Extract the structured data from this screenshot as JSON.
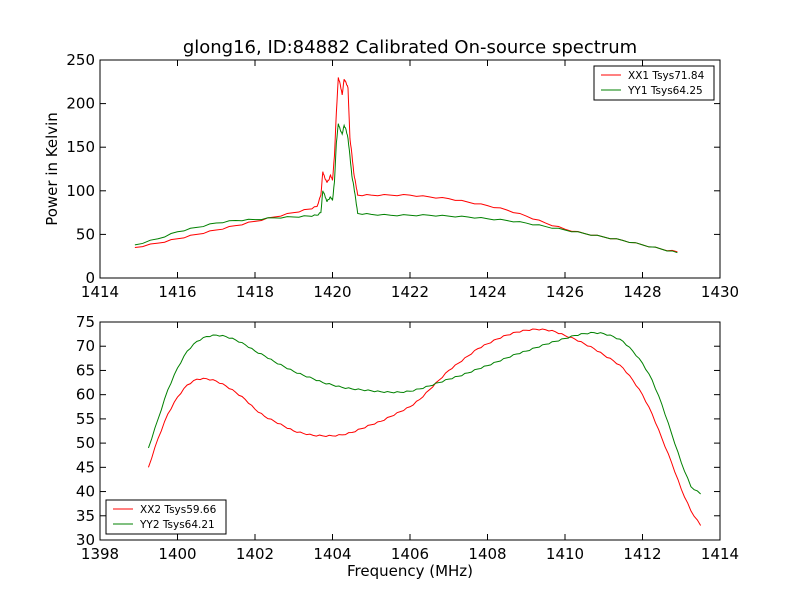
{
  "title": "glong16, ID:84882 Calibrated On-source spectrum",
  "ylabel": "Power in Kelvin",
  "xlabel": "Frequency (MHz)",
  "colors": {
    "xx": "#ff0000",
    "yy": "#008000"
  },
  "chart_data": [
    {
      "type": "line",
      "xlim": [
        1414,
        1430
      ],
      "ylim": [
        0,
        250
      ],
      "xticks": [
        "1414",
        "1416",
        "1418",
        "1420",
        "1422",
        "1424",
        "1426",
        "1428",
        "1430"
      ],
      "yticks": [
        "0",
        "50",
        "100",
        "150",
        "200",
        "250"
      ],
      "legend_position": "top-right",
      "series": [
        {
          "name": "XX1 Tsys71.84",
          "color": "#ff0000",
          "points": [
            [
              1414.9,
              35
            ],
            [
              1415.5,
              40
            ],
            [
              1416,
              45
            ],
            [
              1416.5,
              50
            ],
            [
              1417,
              55
            ],
            [
              1417.5,
              60
            ],
            [
              1418,
              65
            ],
            [
              1418.5,
              70
            ],
            [
              1419,
              75
            ],
            [
              1419.4,
              79
            ],
            [
              1419.6,
              82
            ],
            [
              1419.7,
              95
            ],
            [
              1419.75,
              122
            ],
            [
              1419.8,
              115
            ],
            [
              1419.85,
              110
            ],
            [
              1419.9,
              112
            ],
            [
              1419.95,
              118
            ],
            [
              1420.0,
              112
            ],
            [
              1420.05,
              140
            ],
            [
              1420.1,
              190
            ],
            [
              1420.15,
              230
            ],
            [
              1420.2,
              222
            ],
            [
              1420.25,
              210
            ],
            [
              1420.3,
              228
            ],
            [
              1420.35,
              224
            ],
            [
              1420.4,
              218
            ],
            [
              1420.45,
              160
            ],
            [
              1420.5,
              142
            ],
            [
              1420.55,
              120
            ],
            [
              1420.6,
              108
            ],
            [
              1420.65,
              95
            ],
            [
              1421,
              95
            ],
            [
              1421.5,
              95
            ],
            [
              1422,
              95
            ],
            [
              1422.5,
              93
            ],
            [
              1423,
              91
            ],
            [
              1423.5,
              87
            ],
            [
              1424,
              83
            ],
            [
              1424.5,
              78
            ],
            [
              1425,
              71
            ],
            [
              1425.5,
              63
            ],
            [
              1426,
              56
            ],
            [
              1426.5,
              51
            ],
            [
              1427,
              47
            ],
            [
              1427.5,
              43
            ],
            [
              1428,
              38
            ],
            [
              1428.5,
              33
            ],
            [
              1428.9,
              30
            ]
          ]
        },
        {
          "name": "YY1 Tsys64.25",
          "color": "#008000",
          "points": [
            [
              1414.9,
              38
            ],
            [
              1415.5,
              45
            ],
            [
              1416,
              53
            ],
            [
              1416.5,
              58
            ],
            [
              1417,
              63
            ],
            [
              1417.5,
              66
            ],
            [
              1418,
              67
            ],
            [
              1418.5,
              69
            ],
            [
              1419,
              70
            ],
            [
              1419.4,
              71
            ],
            [
              1419.6,
              72
            ],
            [
              1419.7,
              75
            ],
            [
              1419.75,
              100
            ],
            [
              1419.8,
              95
            ],
            [
              1419.85,
              88
            ],
            [
              1419.9,
              90
            ],
            [
              1419.95,
              93
            ],
            [
              1420.0,
              89
            ],
            [
              1420.05,
              110
            ],
            [
              1420.1,
              155
            ],
            [
              1420.15,
              177
            ],
            [
              1420.2,
              170
            ],
            [
              1420.25,
              165
            ],
            [
              1420.3,
              175
            ],
            [
              1420.35,
              170
            ],
            [
              1420.4,
              160
            ],
            [
              1420.45,
              140
            ],
            [
              1420.5,
              117
            ],
            [
              1420.55,
              105
            ],
            [
              1420.6,
              90
            ],
            [
              1420.65,
              74
            ],
            [
              1421,
              73
            ],
            [
              1421.5,
              72
            ],
            [
              1422,
              72
            ],
            [
              1422.5,
              72
            ],
            [
              1423,
              71
            ],
            [
              1423.5,
              70
            ],
            [
              1424,
              68
            ],
            [
              1424.5,
              66
            ],
            [
              1425,
              63
            ],
            [
              1425.5,
              59
            ],
            [
              1426,
              55
            ],
            [
              1426.5,
              51
            ],
            [
              1427,
              47
            ],
            [
              1427.5,
              43
            ],
            [
              1428,
              38
            ],
            [
              1428.5,
              33
            ],
            [
              1428.9,
              29
            ]
          ]
        }
      ]
    },
    {
      "type": "line",
      "xlim": [
        1398,
        1414
      ],
      "ylim": [
        30,
        75
      ],
      "xticks": [
        "1398",
        "1400",
        "1402",
        "1404",
        "1406",
        "1408",
        "1410",
        "1412",
        "1414"
      ],
      "yticks": [
        "30",
        "35",
        "40",
        "45",
        "50",
        "55",
        "60",
        "65",
        "70",
        "75"
      ],
      "legend_position": "bottom-left",
      "series": [
        {
          "name": "XX2 Tsys59.66",
          "color": "#ff0000",
          "points": [
            [
              1399.25,
              45
            ],
            [
              1399.5,
              51
            ],
            [
              1399.75,
              56
            ],
            [
              1400,
              59.5
            ],
            [
              1400.25,
              62
            ],
            [
              1400.5,
              63.2
            ],
            [
              1400.75,
              63.3
            ],
            [
              1401,
              62.8
            ],
            [
              1401.25,
              61.8
            ],
            [
              1401.5,
              60.5
            ],
            [
              1401.75,
              59
            ],
            [
              1402,
              57
            ],
            [
              1402.25,
              55.5
            ],
            [
              1402.5,
              54.5
            ],
            [
              1402.75,
              53.5
            ],
            [
              1403,
              52.5
            ],
            [
              1403.25,
              52
            ],
            [
              1403.5,
              51.6
            ],
            [
              1403.75,
              51.5
            ],
            [
              1404,
              51.5
            ],
            [
              1404.25,
              51.7
            ],
            [
              1404.5,
              52.2
            ],
            [
              1404.75,
              53
            ],
            [
              1405,
              53.8
            ],
            [
              1405.25,
              54.5
            ],
            [
              1405.5,
              55.5
            ],
            [
              1405.75,
              56.5
            ],
            [
              1406,
              57.5
            ],
            [
              1406.25,
              59
            ],
            [
              1406.5,
              61
            ],
            [
              1406.75,
              63
            ],
            [
              1407,
              65
            ],
            [
              1407.25,
              66.5
            ],
            [
              1407.5,
              68
            ],
            [
              1407.75,
              69.5
            ],
            [
              1408,
              70.5
            ],
            [
              1408.25,
              71.5
            ],
            [
              1408.5,
              72.3
            ],
            [
              1408.75,
              72.9
            ],
            [
              1409,
              73.3
            ],
            [
              1409.25,
              73.5
            ],
            [
              1409.5,
              73.4
            ],
            [
              1409.75,
              73
            ],
            [
              1410,
              72.2
            ],
            [
              1410.25,
              71.5
            ],
            [
              1410.5,
              70.5
            ],
            [
              1410.75,
              69.5
            ],
            [
              1411,
              68.2
            ],
            [
              1411.25,
              67
            ],
            [
              1411.5,
              65.5
            ],
            [
              1411.75,
              63
            ],
            [
              1412,
              60
            ],
            [
              1412.25,
              56
            ],
            [
              1412.5,
              51
            ],
            [
              1412.75,
              46
            ],
            [
              1413,
              40.5
            ],
            [
              1413.25,
              36
            ],
            [
              1413.5,
              33
            ]
          ]
        },
        {
          "name": "YY2 Tsys64.21",
          "color": "#008000",
          "points": [
            [
              1399.25,
              49
            ],
            [
              1399.5,
              55
            ],
            [
              1399.75,
              61
            ],
            [
              1400,
              65.5
            ],
            [
              1400.25,
              69
            ],
            [
              1400.5,
              71
            ],
            [
              1400.75,
              72
            ],
            [
              1401,
              72.3
            ],
            [
              1401.25,
              72
            ],
            [
              1401.5,
              71.3
            ],
            [
              1401.75,
              70.3
            ],
            [
              1402,
              69
            ],
            [
              1402.25,
              68
            ],
            [
              1402.5,
              66.8
            ],
            [
              1402.75,
              65.8
            ],
            [
              1403,
              64.8
            ],
            [
              1403.25,
              64
            ],
            [
              1403.5,
              63.3
            ],
            [
              1403.75,
              62.5
            ],
            [
              1404,
              62
            ],
            [
              1404.25,
              61.5
            ],
            [
              1404.5,
              61.2
            ],
            [
              1404.75,
              61
            ],
            [
              1405,
              60.8
            ],
            [
              1405.25,
              60.6
            ],
            [
              1405.5,
              60.5
            ],
            [
              1405.75,
              60.5
            ],
            [
              1406,
              60.7
            ],
            [
              1406.25,
              61.2
            ],
            [
              1406.5,
              61.8
            ],
            [
              1406.75,
              62.5
            ],
            [
              1407,
              63.2
            ],
            [
              1407.25,
              63.8
            ],
            [
              1407.5,
              64.5
            ],
            [
              1407.75,
              65.3
            ],
            [
              1408,
              66
            ],
            [
              1408.25,
              66.8
            ],
            [
              1408.5,
              67.6
            ],
            [
              1408.75,
              68.4
            ],
            [
              1409,
              69
            ],
            [
              1409.25,
              69.7
            ],
            [
              1409.5,
              70.4
            ],
            [
              1409.75,
              71
            ],
            [
              1410,
              71.6
            ],
            [
              1410.25,
              72.2
            ],
            [
              1410.5,
              72.6
            ],
            [
              1410.75,
              72.8
            ],
            [
              1411,
              72.6
            ],
            [
              1411.25,
              72
            ],
            [
              1411.5,
              71
            ],
            [
              1411.75,
              69
            ],
            [
              1412,
              66.5
            ],
            [
              1412.25,
              63
            ],
            [
              1412.5,
              58
            ],
            [
              1412.75,
              52
            ],
            [
              1413,
              46
            ],
            [
              1413.25,
              41
            ],
            [
              1413.5,
              39.5
            ]
          ]
        }
      ]
    }
  ]
}
